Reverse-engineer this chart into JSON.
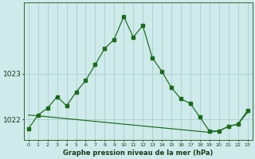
{
  "xlabel": "Graphe pression niveau de la mer (hPa)",
  "background_color": "#ceeaea",
  "grid_color": "#aacece",
  "line_color": "#1a6b1a",
  "hours": [
    0,
    1,
    2,
    3,
    4,
    5,
    6,
    7,
    8,
    9,
    10,
    11,
    12,
    13,
    14,
    15,
    16,
    17,
    18,
    19,
    20,
    21,
    22,
    23
  ],
  "y_spiky": [
    1021.8,
    1022.1,
    1022.25,
    1022.5,
    1022.3,
    1022.6,
    1022.85,
    1023.2,
    1023.55,
    1023.75,
    1024.25,
    1023.8,
    1024.05,
    1023.35,
    1023.05,
    1022.7,
    1022.45,
    1022.35,
    1022.05,
    1021.75,
    1021.75,
    1021.85,
    1021.9,
    1022.2
  ],
  "y_smooth": [
    1022.1,
    1022.08,
    1022.06,
    1022.04,
    1022.02,
    1022.0,
    1021.98,
    1021.96,
    1021.94,
    1021.92,
    1021.9,
    1021.88,
    1021.86,
    1021.84,
    1021.82,
    1021.8,
    1021.78,
    1021.76,
    1021.74,
    1021.72,
    1021.75,
    1021.85,
    1021.9,
    1022.15
  ],
  "ylim_min": 1021.55,
  "ylim_max": 1024.55,
  "yticks": [
    1022,
    1023
  ],
  "xlim_min": -0.5,
  "xlim_max": 23.5,
  "figwidth": 3.2,
  "figheight": 2.0,
  "dpi": 100
}
